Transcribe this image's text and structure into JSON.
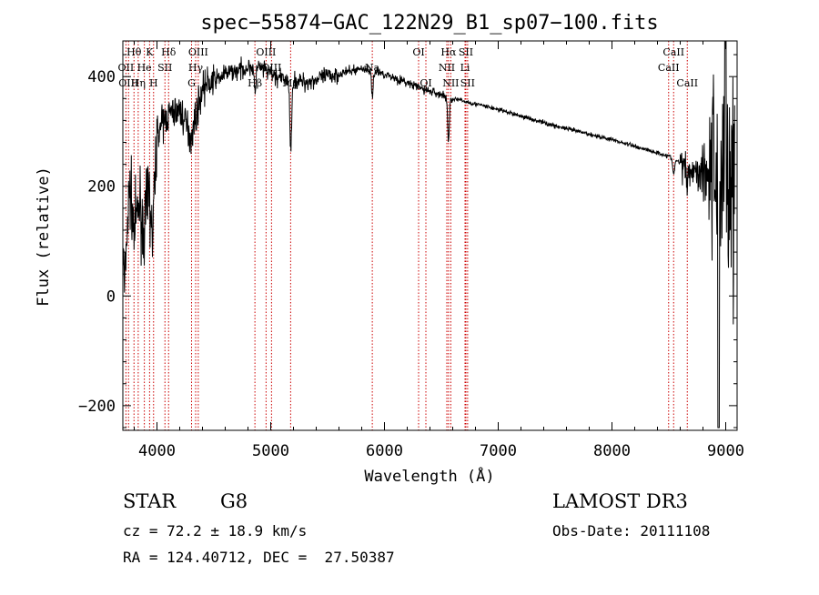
{
  "chart_data": {
    "type": "line",
    "title": "spec−55874−GAC_122N29_B1_sp07−100.fits",
    "xlabel": "Wavelength (Å)",
    "ylabel": "Flux (relative)",
    "xlim": [
      3700,
      9100
    ],
    "ylim": [
      -245,
      465
    ],
    "xticks": [
      4000,
      5000,
      6000,
      7000,
      8000,
      9000
    ],
    "yticks": [
      -200,
      0,
      200,
      400
    ],
    "tick_labels": {
      "x": [
        "4000",
        "5000",
        "6000",
        "7000",
        "8000",
        "9000"
      ],
      "y": [
        "−200",
        "0",
        "200",
        "400"
      ]
    },
    "line_color": "#000000",
    "marker_color": "#cc0000",
    "spectrum_keypoints": [
      {
        "x": 3700,
        "y": 100
      },
      {
        "x": 3715,
        "y": 5
      },
      {
        "x": 3730,
        "y": 90
      },
      {
        "x": 3760,
        "y": 200
      },
      {
        "x": 3800,
        "y": 120
      },
      {
        "x": 3850,
        "y": 170
      },
      {
        "x": 3880,
        "y": 110
      },
      {
        "x": 3930,
        "y": 195
      },
      {
        "x": 3960,
        "y": 100
      },
      {
        "x": 4000,
        "y": 300
      },
      {
        "x": 4100,
        "y": 330
      },
      {
        "x": 4200,
        "y": 340
      },
      {
        "x": 4300,
        "y": 290
      },
      {
        "x": 4400,
        "y": 380
      },
      {
        "x": 4600,
        "y": 405
      },
      {
        "x": 4860,
        "y": 420
      },
      {
        "x": 5100,
        "y": 395
      },
      {
        "x": 5300,
        "y": 390
      },
      {
        "x": 5600,
        "y": 405
      },
      {
        "x": 5800,
        "y": 415
      },
      {
        "x": 6000,
        "y": 405
      },
      {
        "x": 6300,
        "y": 380
      },
      {
        "x": 6600,
        "y": 360
      },
      {
        "x": 7000,
        "y": 340
      },
      {
        "x": 7500,
        "y": 310
      },
      {
        "x": 8000,
        "y": 285
      },
      {
        "x": 8500,
        "y": 255
      },
      {
        "x": 8700,
        "y": 230
      },
      {
        "x": 8900,
        "y": 230
      },
      {
        "x": 9080,
        "y": 200
      }
    ],
    "absorption_features": [
      {
        "x": 4861,
        "depth": 50
      },
      {
        "x": 5175,
        "depth": 130
      },
      {
        "x": 5893,
        "depth": 45
      },
      {
        "x": 6563,
        "depth": 80
      },
      {
        "x": 8542,
        "depth": 30
      },
      {
        "x": 8662,
        "depth": 25
      }
    ],
    "line_markers": [
      {
        "x": 3798,
        "label": "Hθ",
        "row": 1
      },
      {
        "x": 3727,
        "label": "OII",
        "row": 2
      },
      {
        "x": 3750,
        "label": "OIII",
        "row": 3
      },
      {
        "x": 3889,
        "label": "He",
        "row": 2
      },
      {
        "x": 3935,
        "label": "K",
        "row": 1
      },
      {
        "x": 3970,
        "label": "H",
        "row": 3
      },
      {
        "x": 3835,
        "label": "Hη",
        "row": 3
      },
      {
        "x": 4070,
        "label": "SII",
        "row": 2
      },
      {
        "x": 4102,
        "label": "Hδ",
        "row": 1
      },
      {
        "x": 4340,
        "label": "Hγ",
        "row": 2
      },
      {
        "x": 4304,
        "label": "G",
        "row": 3
      },
      {
        "x": 4363,
        "label": "OIII",
        "row": 1
      },
      {
        "x": 4861,
        "label": "Hβ",
        "row": 3
      },
      {
        "x": 4959,
        "label": "OIII",
        "row": 1
      },
      {
        "x": 5007,
        "label": "OIII",
        "row": 2
      },
      {
        "x": 5175,
        "label": "Mg",
        "row": 3
      },
      {
        "x": 5893,
        "label": "Na",
        "row": 2
      },
      {
        "x": 6300,
        "label": "OI",
        "row": 1
      },
      {
        "x": 6364,
        "label": "OI",
        "row": 3
      },
      {
        "x": 6548,
        "label": "NII",
        "row": 2
      },
      {
        "x": 6563,
        "label": "Hα",
        "row": 1
      },
      {
        "x": 6583,
        "label": "NII",
        "row": 3
      },
      {
        "x": 6708,
        "label": "Li",
        "row": 2
      },
      {
        "x": 6716,
        "label": "SII",
        "row": 1
      },
      {
        "x": 6731,
        "label": "SII",
        "row": 3
      },
      {
        "x": 8498,
        "label": "CaII",
        "row": 2
      },
      {
        "x": 8542,
        "label": "CaII",
        "row": 1
      },
      {
        "x": 8662,
        "label": "CaII",
        "row": 3
      }
    ]
  },
  "info": {
    "object_class": "STAR",
    "subclass": "G8",
    "survey": "LAMOST DR3",
    "redshift": "cz = 72.2 ± 18.9 km/s",
    "obs_date": "Obs-Date: 20111108",
    "coords": "RA = 124.40712, DEC =  27.50387"
  }
}
